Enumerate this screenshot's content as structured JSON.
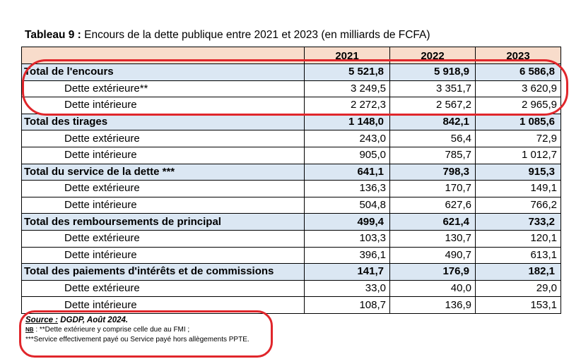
{
  "title": {
    "label": "Tableau 9 :",
    "text": " Encours de la dette publique entre 2021 et 2023 (en milliards de FCFA)"
  },
  "table": {
    "years": [
      "2021",
      "2022",
      "2023"
    ],
    "rows": [
      {
        "type": "total",
        "label": "Total de l'encours",
        "values": [
          "5 521,8",
          "5 918,9",
          "6 586,8"
        ]
      },
      {
        "type": "sub",
        "label": "Dette extérieure**",
        "values": [
          "3 249,5",
          "3 351,7",
          "3 620,9"
        ]
      },
      {
        "type": "sub",
        "label": "Dette intérieure",
        "values": [
          "2 272,3",
          "2 567,2",
          "2 965,9"
        ]
      },
      {
        "type": "total",
        "label": "Total des tirages",
        "values": [
          "1 148,0",
          "842,1",
          "1 085,6"
        ]
      },
      {
        "type": "sub",
        "label": "Dette extérieure",
        "values": [
          "243,0",
          "56,4",
          "72,9"
        ]
      },
      {
        "type": "sub",
        "label": "Dette intérieure",
        "values": [
          "905,0",
          "785,7",
          "1 012,7"
        ]
      },
      {
        "type": "total",
        "label": "Total du service de la dette ***",
        "values": [
          "641,1",
          "798,3",
          "915,3"
        ]
      },
      {
        "type": "sub",
        "label": "Dette extérieure",
        "values": [
          "136,3",
          "170,7",
          "149,1"
        ]
      },
      {
        "type": "sub",
        "label": "Dette intérieure",
        "values": [
          "504,8",
          "627,6",
          "766,2"
        ]
      },
      {
        "type": "total",
        "label": "Total des remboursements de principal",
        "values": [
          "499,4",
          "621,4",
          "733,2"
        ]
      },
      {
        "type": "sub",
        "label": "Dette extérieure",
        "values": [
          "103,3",
          "130,7",
          "120,1"
        ]
      },
      {
        "type": "sub",
        "label": "Dette intérieure",
        "values": [
          "396,1",
          "490,7",
          "613,1"
        ]
      },
      {
        "type": "total",
        "label": "Total des paiements d'intérêts et de commissions",
        "values": [
          "141,7",
          "176,9",
          "182,1"
        ]
      },
      {
        "type": "sub",
        "label": "Dette extérieure",
        "values": [
          "33,0",
          "40,0",
          "29,0"
        ]
      },
      {
        "type": "sub",
        "label": "Dette intérieure",
        "values": [
          "108,7",
          "136,9",
          "153,1"
        ]
      }
    ]
  },
  "notes": {
    "source_label": "Source :",
    "source_text": " DGDP, Août 2024.",
    "nb_label": "NB",
    "nb_text": " : **Dette extérieure y comprise celle due au FMI ;",
    "service_note": "***Service effectivement payé ou Service payé hors allègements PPTE."
  },
  "colors": {
    "header_fill": "#f8dccb",
    "total_fill": "#dbe7f3",
    "highlight": "#e0262b"
  }
}
